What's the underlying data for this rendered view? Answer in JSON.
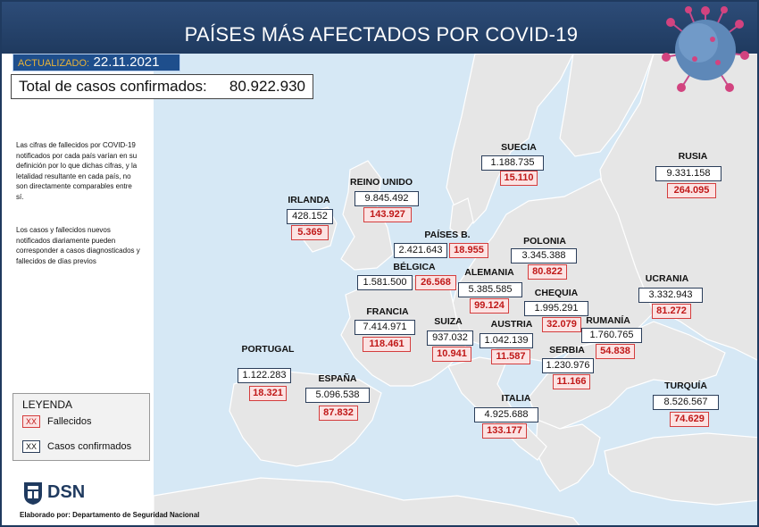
{
  "title": "PAÍSES MÁS AFECTADOS POR COVID-19",
  "updated_label": "ACTUALIZADO:",
  "updated_date": "22.11.2021",
  "total_label": "Total de casos confirmados:",
  "total_value": "80.922.930",
  "note_1": "Las cifras de fallecidos por COVID-19 notificados por cada país varían en su definición por lo que dichas cifras, y la letalidad resultante en cada país, no son directamente comparables entre sí.",
  "note_2": "Los casos y fallecidos nuevos notificados diariamente pueden corresponder a casos diagnosticados y fallecidos de días previos",
  "legend": {
    "title": "LEYENDA",
    "deaths_swatch": "XX",
    "deaths_label": "Fallecidos",
    "cases_swatch": "XX",
    "cases_label": "Casos confirmados"
  },
  "logo_text": "DSN",
  "credit": "Elaborado por: Departamento de Seguridad Nacional",
  "colors": {
    "header": "#1f3a5f",
    "sea": "#d6e8f5",
    "land": "#e6e6e6",
    "deaths_border": "#d43d3d",
    "deaths_fill": "#fbe3e3",
    "cases_border": "#2b3e5a"
  },
  "countries": [
    {
      "id": "suecia",
      "name": "SUECIA",
      "cases": "1.188.735",
      "deaths": "15.110"
    },
    {
      "id": "rusia",
      "name": "RUSIA",
      "cases": "9.331.158",
      "deaths": "264.095"
    },
    {
      "id": "reino-unido",
      "name": "REINO UNIDO",
      "cases": "9.845.492",
      "deaths": "143.927"
    },
    {
      "id": "irlanda",
      "name": "IRLANDA",
      "cases": "428.152",
      "deaths": "5.369"
    },
    {
      "id": "paises-bajos",
      "name": "PAÍSES B.",
      "cases": "2.421.643",
      "deaths": "18.955"
    },
    {
      "id": "polonia",
      "name": "POLONIA",
      "cases": "3.345.388",
      "deaths": "80.822"
    },
    {
      "id": "belgica",
      "name": "BÉLGICA",
      "cases": "1.581.500",
      "deaths": "26.568"
    },
    {
      "id": "alemania",
      "name": "ALEMANIA",
      "cases": "5.385.585",
      "deaths": "99.124"
    },
    {
      "id": "ucrania",
      "name": "UCRANIA",
      "cases": "3.332.943",
      "deaths": "81.272"
    },
    {
      "id": "chequia",
      "name": "CHEQUIA",
      "cases": "1.995.291",
      "deaths": "32.079"
    },
    {
      "id": "francia",
      "name": "FRANCIA",
      "cases": "7.414.971",
      "deaths": "118.461"
    },
    {
      "id": "suiza",
      "name": "SUIZA",
      "cases": "937.032",
      "deaths": "10.941"
    },
    {
      "id": "austria",
      "name": "AUSTRIA",
      "cases": "1.042.139",
      "deaths": "11.587"
    },
    {
      "id": "rumania",
      "name": "RUMANÍA",
      "cases": "1.760.765",
      "deaths": "54.838"
    },
    {
      "id": "serbia",
      "name": "SERBIA",
      "cases": "1.230.976",
      "deaths": "11.166"
    },
    {
      "id": "portugal",
      "name": "PORTUGAL",
      "cases": "1.122.283",
      "deaths": "18.321"
    },
    {
      "id": "espana",
      "name": "ESPAÑA",
      "cases": "5.096.538",
      "deaths": "87.832"
    },
    {
      "id": "italia",
      "name": "ITALIA",
      "cases": "4.925.688",
      "deaths": "133.177"
    },
    {
      "id": "turquia",
      "name": "TURQUÍA",
      "cases": "8.526.567",
      "deaths": "74.629"
    }
  ]
}
